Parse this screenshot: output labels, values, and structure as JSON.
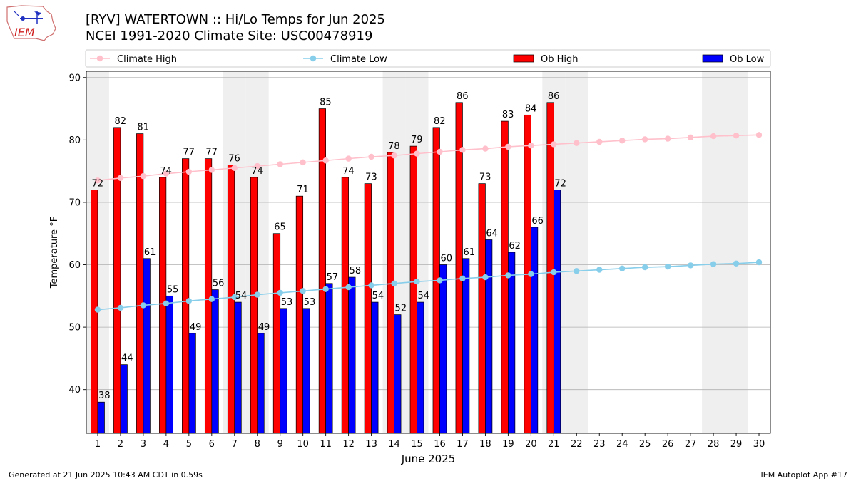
{
  "header": {
    "title": "[RYV] WATERTOWN :: Hi/Lo Temps for Jun 2025",
    "subtitle": "NCEI 1991-2020 Climate Site: USC00478919",
    "logo_text": "IEM"
  },
  "footer": {
    "generated": "Generated at 21 Jun 2025 10:43 AM CDT in 0.59s",
    "app": "IEM Autoplot App #17"
  },
  "colors": {
    "climate_high": "#ffc0cb",
    "climate_low": "#87ceeb",
    "ob_high": "#ff0000",
    "ob_low": "#0000ff",
    "weekend_shade": "#efefef",
    "grid": "#b0b0b0"
  },
  "chart_data": {
    "type": "bar",
    "xlabel": "June 2025",
    "ylabel": "Temperature °F",
    "ylim": [
      33,
      91
    ],
    "yticks": [
      40,
      50,
      60,
      70,
      80,
      90
    ],
    "days": [
      1,
      2,
      3,
      4,
      5,
      6,
      7,
      8,
      9,
      10,
      11,
      12,
      13,
      14,
      15,
      16,
      17,
      18,
      19,
      20,
      21,
      22,
      23,
      24,
      25,
      26,
      27,
      28,
      29,
      30
    ],
    "shaded_days": [
      1,
      7,
      8,
      14,
      15,
      21,
      22,
      28,
      29
    ],
    "grid": "horizontal",
    "legend_position": "top",
    "legend": [
      "Climate High",
      "Climate Low",
      "Ob High",
      "Ob Low"
    ],
    "series": [
      {
        "name": "Climate High",
        "kind": "line",
        "values": [
          73.5,
          73.9,
          74.2,
          74.6,
          74.9,
          75.2,
          75.5,
          75.8,
          76.1,
          76.4,
          76.7,
          77.0,
          77.3,
          77.5,
          77.8,
          78.1,
          78.4,
          78.6,
          78.9,
          79.1,
          79.3,
          79.5,
          79.7,
          79.9,
          80.1,
          80.2,
          80.4,
          80.6,
          80.7,
          80.8
        ]
      },
      {
        "name": "Climate Low",
        "kind": "line",
        "values": [
          52.8,
          53.1,
          53.5,
          53.8,
          54.2,
          54.5,
          54.8,
          55.2,
          55.5,
          55.8,
          56.1,
          56.4,
          56.7,
          57.0,
          57.3,
          57.5,
          57.8,
          58.0,
          58.3,
          58.5,
          58.8,
          59.0,
          59.2,
          59.4,
          59.6,
          59.7,
          59.9,
          60.1,
          60.2,
          60.4
        ]
      },
      {
        "name": "Ob High",
        "kind": "bar",
        "values": [
          72,
          82,
          81,
          74,
          77,
          77,
          76,
          74,
          65,
          71,
          85,
          74,
          73,
          78,
          79,
          82,
          86,
          73,
          83,
          84,
          86
        ]
      },
      {
        "name": "Ob Low",
        "kind": "bar",
        "values": [
          38,
          44,
          61,
          55,
          49,
          56,
          54,
          49,
          53,
          53,
          57,
          58,
          54,
          52,
          54,
          60,
          61,
          64,
          62,
          66,
          72
        ]
      }
    ]
  }
}
